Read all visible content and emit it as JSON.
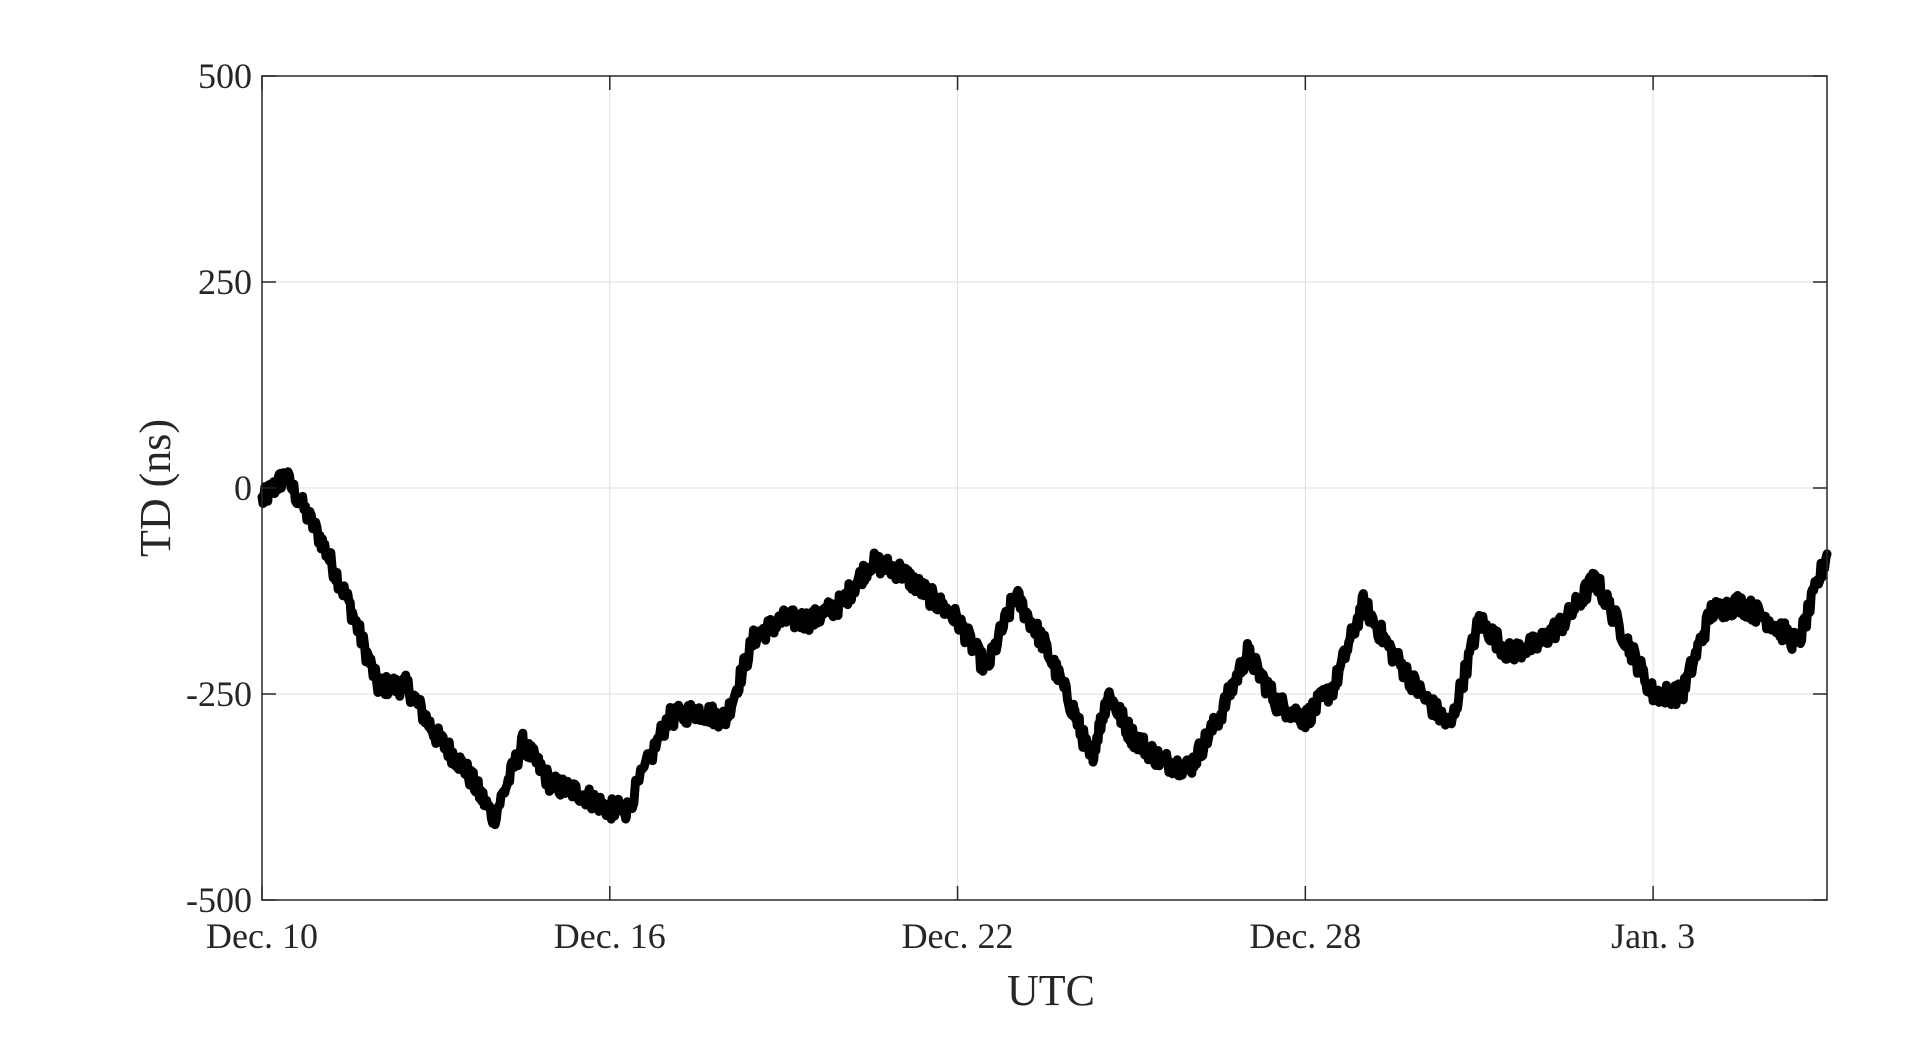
{
  "chart_data": {
    "type": "line",
    "xlabel": "UTC",
    "ylabel": "TD (ns)",
    "x_tick_labels": [
      "Dec. 10",
      "Dec. 16",
      "Dec. 22",
      "Dec. 28",
      "Jan. 3"
    ],
    "x_tick_dates": [
      "Dec. 10",
      "Dec. 16",
      "Dec. 22",
      "Dec. 28",
      "Jan. 3"
    ],
    "xlim": [
      "Dec. 10",
      "Jan. 6"
    ],
    "y_ticks": [
      -500,
      -250,
      0,
      250,
      500
    ],
    "ylim": [
      -500,
      500
    ],
    "grid": true,
    "line_color": "#000000",
    "series": [
      {
        "x": [
          "Dec. 10",
          "Dec. 10.4",
          "Dec. 11",
          "Dec. 11.5",
          "Dec. 12",
          "Dec. 12.5",
          "Dec. 13",
          "Dec. 13.5",
          "Dec. 14",
          "Dec. 14.5",
          "Dec. 15",
          "Dec. 15.5",
          "Dec. 16",
          "Dec. 16.3",
          "Dec. 17",
          "Dec. 17.5",
          "Dec. 18",
          "Dec. 18.5",
          "Dec. 19",
          "Dec. 19.5",
          "Dec. 20",
          "Dec. 20.5",
          "Dec. 21",
          "Dec. 21.5",
          "Dec. 22",
          "Dec. 22.5",
          "Dec. 23",
          "Dec. 23.5",
          "Dec. 24",
          "Dec. 24.3",
          "Dec. 24.6",
          "Dec. 25",
          "Dec. 25.5",
          "Dec. 26",
          "Dec. 26.5",
          "Dec. 27",
          "Dec. 27.5",
          "Dec. 28",
          "Dec. 28.5",
          "Dec. 29",
          "Dec. 29.5",
          "Dec. 30",
          "Dec. 30.5",
          "Dec. 31",
          "Dec. 31.5",
          "Jan. 1",
          "Jan. 1.5",
          "Jan. 2",
          "Jan. 2.5",
          "Jan. 3",
          "Jan. 3.5",
          "Jan. 4",
          "Jan. 4.5",
          "Jan. 5",
          "Jan. 5.5",
          "Jan. 6"
        ],
        "values": [
          -15,
          15,
          -60,
          -140,
          -240,
          -240,
          -300,
          -340,
          -400,
          -310,
          -360,
          -370,
          -390,
          -390,
          -280,
          -270,
          -280,
          -180,
          -160,
          -160,
          -140,
          -90,
          -100,
          -130,
          -160,
          -220,
          -130,
          -190,
          -270,
          -330,
          -250,
          -300,
          -330,
          -340,
          -280,
          -200,
          -260,
          -280,
          -240,
          -140,
          -200,
          -250,
          -290,
          -160,
          -200,
          -190,
          -160,
          -110,
          -180,
          -250,
          -250,
          -150,
          -140,
          -160,
          -190,
          -80
        ]
      }
    ]
  }
}
